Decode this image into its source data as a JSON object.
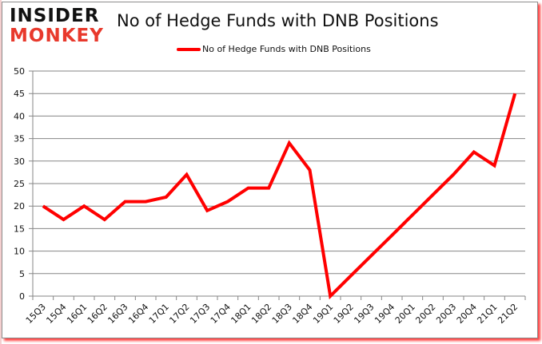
{
  "logo": {
    "line1": "INSIDER",
    "line2": "MONKEY"
  },
  "colors": {
    "series": "#ff0000",
    "grid": "#868686",
    "logo_accent": "#e8392c",
    "frame_shadow": "#ff0000"
  },
  "chart_data": {
    "type": "line",
    "title": "No of Hedge Funds with DNB Positions",
    "xlabel": "",
    "ylabel": "",
    "ylim": [
      0,
      50
    ],
    "yticks": [
      0,
      5,
      10,
      15,
      20,
      25,
      30,
      35,
      40,
      45,
      50
    ],
    "grid": true,
    "legend_position": "top",
    "categories": [
      "15Q3",
      "15Q4",
      "16Q1",
      "16Q2",
      "16Q3",
      "16Q4",
      "17Q1",
      "17Q2",
      "17Q3",
      "17Q4",
      "18Q1",
      "18Q2",
      "18Q3",
      "18Q4",
      "19Q1",
      "19Q2",
      "19Q3",
      "19Q4",
      "20Q1",
      "20Q2",
      "20Q3",
      "20Q4",
      "21Q1",
      "21Q2"
    ],
    "series": [
      {
        "name": "No of Hedge Funds with DNB Positions",
        "color": "#ff0000",
        "values": [
          20,
          17,
          20,
          17,
          21,
          21,
          22,
          27,
          19,
          21,
          24,
          24,
          34,
          28,
          0,
          4.5,
          9,
          13.5,
          18,
          22.5,
          27,
          32,
          29,
          45
        ]
      }
    ]
  }
}
